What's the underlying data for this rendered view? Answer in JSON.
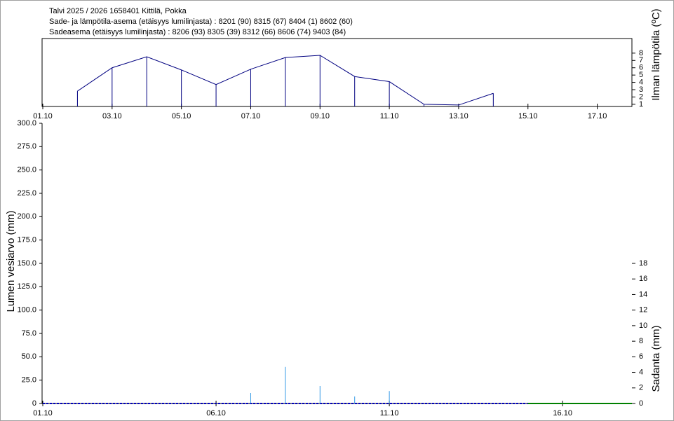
{
  "chart_data": [
    {
      "type": "line",
      "title": "Talvi 2025 / 2026 1658401 Kittilä, Pokka",
      "subtitle": [
        "Sade- ja lämpötila-asema (etäisyys lumilinjasta) :   8201 (90) 8315 (67) 8404 (1) 8602 (60)",
        "Sadeasema (etäisyys lumilinjasta) :   8206 (93) 8305 (39) 8312 (66) 8606 (74) 9403 (84)"
      ],
      "y_label": "Ilman lämpötila (ºC)",
      "xlim": [
        1,
        18
      ],
      "xticks": [
        {
          "value": 1,
          "label": "01.10"
        },
        {
          "value": 3,
          "label": "03.10"
        },
        {
          "value": 5,
          "label": "05.10"
        },
        {
          "value": 7,
          "label": "07.10"
        },
        {
          "value": 9,
          "label": "09.10"
        },
        {
          "value": 11,
          "label": "11.10"
        },
        {
          "value": 13,
          "label": "13.10"
        },
        {
          "value": 15,
          "label": "15.10"
        },
        {
          "value": 17,
          "label": "17.10"
        }
      ],
      "ylim": [
        0.7,
        10
      ],
      "yticks": [
        1,
        2,
        3,
        4,
        5,
        6,
        7,
        8
      ],
      "series": [
        {
          "color": "#000080",
          "x": [
            2,
            3,
            4,
            5,
            6,
            7,
            8,
            9,
            10,
            11,
            12,
            13,
            14
          ],
          "values": [
            2.8,
            6.0,
            7.5,
            5.7,
            3.7,
            5.8,
            7.4,
            7.7,
            4.8,
            4.1,
            1.0,
            0.9,
            2.5
          ]
        }
      ]
    },
    {
      "type": "bar",
      "y_label": "Lumen vesiarvo (mm)",
      "y2_label": "Sadanta (mm)",
      "xlim": [
        1,
        18
      ],
      "xticks": [
        {
          "value": 1,
          "label": "01.10"
        },
        {
          "value": 6,
          "label": "06.10"
        },
        {
          "value": 11,
          "label": "11.10"
        },
        {
          "value": 16,
          "label": "16.10"
        }
      ],
      "ylim": [
        0,
        300
      ],
      "yticks": [
        0,
        {
          "value": 25,
          "label": "25.0"
        },
        {
          "value": 50,
          "label": "50.0"
        },
        {
          "value": 75,
          "label": "75.0"
        },
        {
          "value": 100,
          "label": "100.0"
        },
        {
          "value": 125,
          "label": "125.0"
        },
        {
          "value": 150,
          "label": "150.0"
        },
        {
          "value": 175,
          "label": "175.0"
        },
        {
          "value": 200,
          "label": "200.0"
        },
        {
          "value": 225,
          "label": "225.0"
        },
        {
          "value": 250,
          "label": "250.0"
        },
        {
          "value": 275,
          "label": "275.0"
        },
        {
          "value": 300,
          "label": "300.0"
        }
      ],
      "y2lim": [
        0,
        36
      ],
      "y2ticks": [
        0,
        2,
        4,
        6,
        8,
        10,
        12,
        14,
        16,
        18
      ],
      "series": [
        {
          "type": "line",
          "color": "#0000c0",
          "x": [
            1,
            15
          ],
          "values": [
            0,
            0
          ]
        },
        {
          "type": "line",
          "color": "#008000",
          "x": [
            15,
            18
          ],
          "values": [
            0,
            0
          ]
        },
        {
          "type": "bar",
          "axis": "y2",
          "color": "#3399e6",
          "x": [
            7,
            8,
            9,
            10,
            11
          ],
          "values": [
            1.35,
            4.7,
            2.25,
            0.9,
            1.6
          ]
        }
      ]
    }
  ]
}
